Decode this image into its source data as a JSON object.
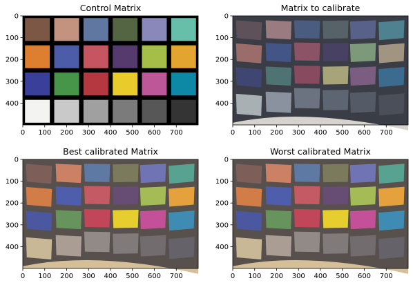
{
  "panels": [
    {
      "title": "Control Matrix",
      "variant": "control",
      "patches": [
        [
          "#7c5746",
          "#c49380",
          "#5f77a1",
          "#546544",
          "#8a88bb",
          "#68bfa9"
        ],
        [
          "#dd7f2e",
          "#4d5ca8",
          "#c65561",
          "#553a6e",
          "#a4be48",
          "#e3a52f"
        ],
        [
          "#3a3f99",
          "#479549",
          "#b5373f",
          "#e9cb2b",
          "#bd5797",
          "#0d89a5"
        ],
        [
          "#f3f3f1",
          "#c9c9c9",
          "#a0a0a0",
          "#7b7b7b",
          "#575757",
          "#343434"
        ]
      ]
    },
    {
      "title": "Matrix to calibrate",
      "variant": "photo",
      "patches": [
        [
          "#5f5159",
          "#9a7b80",
          "#4a5c80",
          "#566168",
          "#58618a",
          "#4f8290"
        ],
        [
          "#9a6c6a",
          "#435586",
          "#8c5266",
          "#484164",
          "#7c9a7a",
          "#a19480"
        ],
        [
          "#3f4672",
          "#4d7372",
          "#884a5e",
          "#a6a478",
          "#7c5d82",
          "#3c6b90"
        ],
        [
          "#a8b0b4",
          "#8a92a0",
          "#6c7380",
          "#5e6572",
          "#545a66",
          "#4a4f5a"
        ]
      ]
    },
    {
      "title": "Best calibrated Matrix",
      "variant": "photo",
      "patches": [
        [
          "#7d5e58",
          "#cc8064",
          "#5e7aa4",
          "#7c7a5c",
          "#7174b4",
          "#58a292"
        ],
        [
          "#d27d48",
          "#4f5eac",
          "#c45a64",
          "#674c74",
          "#a4bc56",
          "#e5a23c"
        ],
        [
          "#4b579e",
          "#66945c",
          "#c04658",
          "#e6ce2e",
          "#c45098",
          "#3e8cb4"
        ],
        [
          "#c8b896",
          "#aa9e94",
          "#928a86",
          "#807a7a",
          "#726c6e",
          "#66626a"
        ]
      ]
    },
    {
      "title": "Worst calibrated Matrix",
      "variant": "photo",
      "patches": [
        [
          "#7d5e58",
          "#cc8064",
          "#5e7aa4",
          "#7c7a5c",
          "#7174b4",
          "#58a292"
        ],
        [
          "#d27d48",
          "#4f5eac",
          "#c45a64",
          "#674c74",
          "#a4bc56",
          "#e5a23c"
        ],
        [
          "#4b579e",
          "#66945c",
          "#c04658",
          "#e6ce2e",
          "#c45098",
          "#3e8cb4"
        ],
        [
          "#c8b896",
          "#aa9e94",
          "#928a86",
          "#807a7a",
          "#726c6e",
          "#66626a"
        ]
      ]
    }
  ],
  "xticks": [
    "0",
    "100",
    "200",
    "300",
    "400",
    "500",
    "600",
    "700"
  ],
  "yticks": [
    "0",
    "100",
    "200",
    "300",
    "400"
  ],
  "colors": {
    "control_gap": "#000000",
    "photo_gap_control": "#4c4c4c",
    "photo_gap_src": "#3a3d46",
    "photo_gap_cal": "#57504c",
    "floor_src": "#d6d3cc",
    "floor_cal": "#d4bf98"
  }
}
